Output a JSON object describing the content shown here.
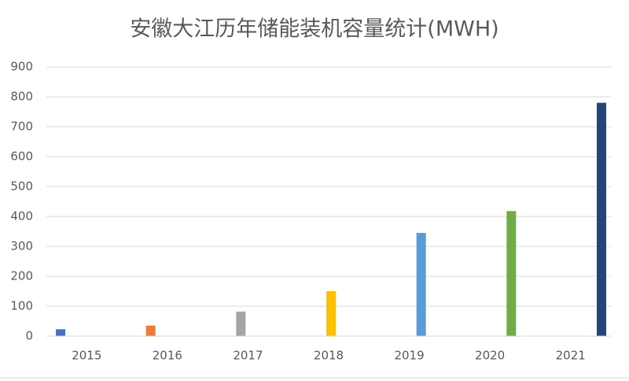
{
  "chart_data": {
    "type": "bar",
    "title": "安徽大江历年储能装机容量统计(MWH)",
    "categories": [
      "2015",
      "2016",
      "2017",
      "2018",
      "2019",
      "2020",
      "2021"
    ],
    "values": [
      23,
      35,
      82,
      150,
      345,
      418,
      780
    ],
    "colors": [
      "#4472c4",
      "#ed7d31",
      "#a5a5a5",
      "#ffc000",
      "#5b9bd5",
      "#70ad47",
      "#264478"
    ],
    "ylim": [
      0,
      900
    ],
    "yticks": [
      0,
      100,
      200,
      300,
      400,
      500,
      600,
      700,
      800,
      900
    ],
    "grid": true
  }
}
